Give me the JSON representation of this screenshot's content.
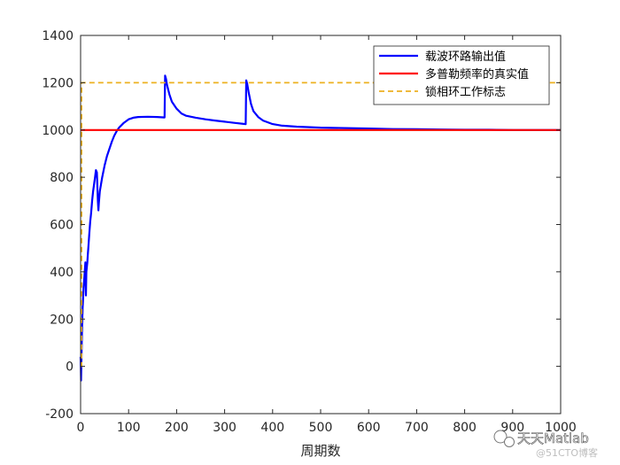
{
  "chart_data": {
    "type": "line",
    "title": "",
    "xlabel": "周期数",
    "ylabel": "",
    "xlim": [
      0,
      1000
    ],
    "ylim": [
      -200,
      1400
    ],
    "xticks": [
      0,
      100,
      200,
      300,
      400,
      500,
      600,
      700,
      800,
      900,
      1000
    ],
    "yticks": [
      -200,
      0,
      200,
      400,
      600,
      800,
      1000,
      1200,
      1400
    ],
    "grid": false,
    "legend_position": "top-right",
    "series": [
      {
        "name": "载波环路输出值",
        "color": "#0000ff",
        "style": "solid",
        "x": [
          0,
          1,
          2,
          3,
          4,
          6,
          8,
          10,
          11,
          12,
          14,
          15,
          16,
          18,
          20,
          22,
          24,
          26,
          28,
          30,
          32,
          34,
          36,
          37,
          38,
          40,
          45,
          50,
          55,
          60,
          65,
          70,
          75,
          80,
          90,
          100,
          110,
          120,
          140,
          160,
          175,
          176,
          178,
          180,
          185,
          190,
          200,
          210,
          220,
          240,
          260,
          280,
          300,
          320,
          344,
          345,
          347,
          350,
          355,
          360,
          370,
          380,
          400,
          420,
          450,
          500,
          550,
          600,
          650,
          700,
          750,
          800,
          850,
          900,
          950,
          1000
        ],
        "y": [
          40,
          -60,
          60,
          150,
          240,
          330,
          380,
          440,
          300,
          400,
          440,
          470,
          500,
          560,
          610,
          650,
          700,
          740,
          770,
          800,
          830,
          820,
          700,
          660,
          690,
          740,
          800,
          850,
          890,
          920,
          950,
          975,
          995,
          1010,
          1030,
          1045,
          1052,
          1055,
          1056,
          1055,
          1053,
          1230,
          1215,
          1190,
          1150,
          1120,
          1090,
          1070,
          1060,
          1052,
          1045,
          1040,
          1035,
          1030,
          1025,
          1210,
          1195,
          1160,
          1110,
          1080,
          1055,
          1040,
          1025,
          1018,
          1014,
          1010,
          1008,
          1006,
          1004,
          1003,
          1002,
          1001,
          1001,
          1000,
          1000,
          1000
        ]
      },
      {
        "name": "多普勒频率的真实值",
        "color": "#ff0000",
        "style": "solid",
        "x": [
          0,
          1000
        ],
        "y": [
          1000,
          1000
        ]
      },
      {
        "name": "锁相环工作标志",
        "color": "#edb120",
        "style": "dashed",
        "x": [
          0,
          2,
          2,
          1000
        ],
        "y": [
          0,
          0,
          1200,
          1200
        ]
      }
    ]
  },
  "watermark": {
    "main": "天天Matlab",
    "sub": "@51CTO博客"
  }
}
